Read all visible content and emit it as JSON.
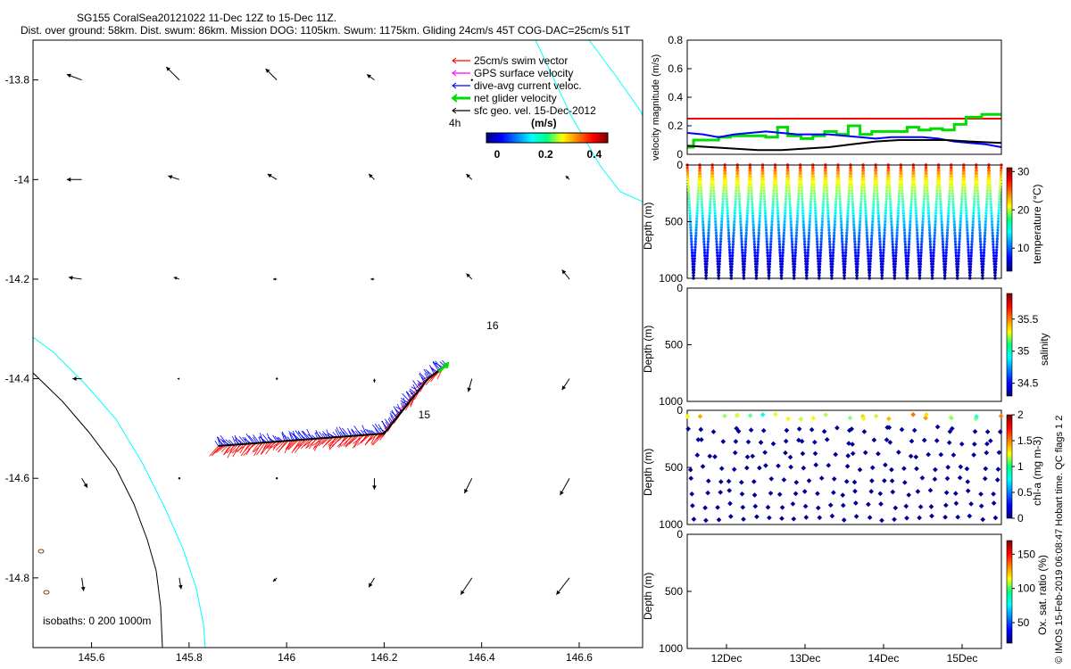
{
  "header": {
    "title": "SG155 CoralSea20121022 11-Dec 12Z to 15-Dec 11Z.",
    "subtitle": "Dist. over ground: 58km. Dist. swum: 86km. Mission DOG: 1105km. Swum: 1175km. Gliding 24cm/s 45T COG-DAC=25cm/s 51T"
  },
  "copyright": "© IMOS 15-Feb-2019 06:08:47 Hobart time. QC flags 1  2",
  "colors": {
    "swim_vector": "#ff0000",
    "gps_velocity": "#ff00ff",
    "dive_avg_current": "#0000ff",
    "net_glider": "#00dd00",
    "sfc_geo": "#000000",
    "isobath_0": "#00ffff",
    "isobath_200": "#000000"
  },
  "chart_data": [
    {
      "type": "scatter",
      "name": "map",
      "xlim": [
        145.48,
        146.73
      ],
      "ylim": [
        -14.94,
        -13.72
      ],
      "xticks": [
        "145.6",
        "145.8",
        "146",
        "146.2",
        "146.4",
        "146.6"
      ],
      "yticks": [
        "-13.8",
        "-14",
        "-14.2",
        "-14.4",
        "-14.6",
        "-14.8"
      ],
      "legend": {
        "placement": "top-right",
        "entries": [
          "25cm/s swim vector",
          "GPS surface velocity",
          "dive-avg current veloc.",
          "net glider velocity",
          "sfc geo. vel. 15-Dec-2012"
        ]
      },
      "colorbar": {
        "label": "(m/s)",
        "ticks": [
          "0",
          "0.2",
          "0.4"
        ],
        "range": [
          0,
          0.5
        ],
        "time_label": "4h"
      },
      "annotations": [
        {
          "text": "16",
          "lon": 146.41,
          "lat": -14.3
        },
        {
          "text": "15",
          "lon": 146.27,
          "lat": -14.48
        }
      ],
      "isobath_label": "isobaths: 0   200   1000m",
      "track": {
        "path": [
          [
            145.86,
            -14.535
          ],
          [
            146.0,
            -14.525
          ],
          [
            146.2,
            -14.51
          ],
          [
            146.29,
            -14.4
          ],
          [
            146.33,
            -14.37
          ]
        ]
      },
      "sfc_geo_vectors": {
        "lon": [
          145.58,
          145.78,
          145.98,
          146.18,
          146.38,
          146.58
        ],
        "lat": [
          -13.8,
          -14.0,
          -14.2,
          -14.4,
          -14.6,
          -14.8
        ],
        "u": [
          [
            -0.08,
            -0.07,
            -0.06,
            -0.04,
            0.0,
            0.0
          ],
          [
            -0.08,
            -0.06,
            -0.05,
            -0.03,
            -0.03,
            -0.02
          ],
          [
            -0.07,
            -0.03,
            -0.02,
            -0.02,
            -0.03,
            -0.04
          ],
          [
            -0.05,
            -0.01,
            0.0,
            0.0,
            -0.02,
            -0.04
          ],
          [
            0.03,
            0.0,
            0.0,
            0.0,
            -0.04,
            -0.05
          ],
          [
            0.01,
            0.01,
            -0.02,
            -0.03,
            -0.06,
            -0.07
          ]
        ],
        "v": [
          [
            0.03,
            0.07,
            0.06,
            0.03,
            0.0,
            0.0
          ],
          [
            0.0,
            0.02,
            0.03,
            0.03,
            0.03,
            0.02
          ],
          [
            0.01,
            0.01,
            0.0,
            0.0,
            0.03,
            0.05
          ],
          [
            0.0,
            0.0,
            0.0,
            -0.02,
            -0.07,
            -0.06
          ],
          [
            -0.05,
            0.0,
            0.0,
            -0.06,
            -0.08,
            -0.09
          ],
          [
            -0.07,
            -0.06,
            -0.02,
            -0.05,
            -0.09,
            -0.09
          ]
        ]
      }
    },
    {
      "type": "line",
      "name": "velocity",
      "ylabel": "velocity magnitude (m/s)",
      "ylim": [
        0,
        0.8
      ],
      "yticks": [
        "0",
        "0.2",
        "0.4",
        "0.6",
        "0.8"
      ],
      "xlim": [
        11.5,
        15.5
      ],
      "series": [
        {
          "color": "#ff0000",
          "x": [
            11.5,
            15.5
          ],
          "y": [
            0.25,
            0.25
          ]
        },
        {
          "color": "#00dd00",
          "step": true,
          "x": [
            11.5,
            11.58,
            11.75,
            11.9,
            12.05,
            12.2,
            12.35,
            12.5,
            12.65,
            12.78,
            12.95,
            13.1,
            13.25,
            13.4,
            13.55,
            13.7,
            13.85,
            14.0,
            14.15,
            14.3,
            14.45,
            14.6,
            14.75,
            14.9,
            15.05,
            15.25,
            15.5
          ],
          "y": [
            0.05,
            0.1,
            0.1,
            0.12,
            0.13,
            0.13,
            0.13,
            0.12,
            0.19,
            0.13,
            0.11,
            0.13,
            0.16,
            0.14,
            0.2,
            0.14,
            0.16,
            0.16,
            0.16,
            0.19,
            0.17,
            0.18,
            0.17,
            0.21,
            0.26,
            0.28,
            0.28
          ]
        },
        {
          "color": "#0000ff",
          "x": [
            11.5,
            11.7,
            11.9,
            12.1,
            12.3,
            12.5,
            12.7,
            12.9,
            13.1,
            13.3,
            13.5,
            13.7,
            13.9,
            14.1,
            14.3,
            14.5,
            14.7,
            14.9,
            15.1,
            15.3,
            15.5
          ],
          "y": [
            0.15,
            0.14,
            0.12,
            0.14,
            0.15,
            0.16,
            0.15,
            0.14,
            0.14,
            0.14,
            0.13,
            0.12,
            0.11,
            0.12,
            0.12,
            0.12,
            0.11,
            0.09,
            0.08,
            0.07,
            0.05
          ]
        },
        {
          "color": "#000000",
          "x": [
            11.5,
            11.8,
            12.1,
            12.4,
            12.7,
            13.0,
            13.3,
            13.6,
            13.9,
            14.2,
            14.5,
            14.8,
            15.1,
            15.5
          ],
          "y": [
            0.06,
            0.05,
            0.04,
            0.03,
            0.03,
            0.04,
            0.05,
            0.07,
            0.09,
            0.1,
            0.1,
            0.1,
            0.09,
            0.08
          ]
        }
      ]
    },
    {
      "type": "heatmap",
      "name": "temperature",
      "ylabel": "Depth (m)",
      "clabel": "temperature (°C)",
      "ylim": [
        1000,
        0
      ],
      "yticks": [
        "0",
        "500",
        "1000"
      ],
      "cticks": [
        "10",
        "20",
        "30"
      ],
      "crange": [
        4,
        31
      ],
      "dives": 25,
      "max_depth": 1000
    },
    {
      "type": "heatmap",
      "name": "salinity",
      "ylabel": "Depth (m)",
      "clabel": "salinity",
      "ylim": [
        1000,
        0
      ],
      "yticks": [
        "0",
        "500",
        "1000"
      ],
      "cticks": [
        "34.5",
        "35",
        "35.5"
      ],
      "crange": [
        34.3,
        35.9
      ]
    },
    {
      "type": "scatter",
      "name": "chla",
      "ylabel": "Depth (m)",
      "clabel": "chl-a (mg m-3)",
      "ylim": [
        1000,
        0
      ],
      "yticks": [
        "0",
        "500",
        "1000"
      ],
      "cticks": [
        "0",
        "0.5",
        "1",
        "1.5",
        "2"
      ],
      "crange": [
        0,
        2
      ],
      "dives": 25,
      "max_depth": 1000
    },
    {
      "type": "heatmap",
      "name": "oxygen",
      "ylabel": "Depth (m)",
      "clabel": "Ox. sat. ratio (%)",
      "ylim": [
        1000,
        0
      ],
      "yticks": [
        "0",
        "500",
        "1000"
      ],
      "cticks": [
        "50",
        "100",
        "150"
      ],
      "crange": [
        20,
        170
      ],
      "xticks": [
        "12Dec",
        "13Dec",
        "14Dec",
        "15Dec"
      ],
      "xlim": [
        11.5,
        15.5
      ]
    }
  ]
}
